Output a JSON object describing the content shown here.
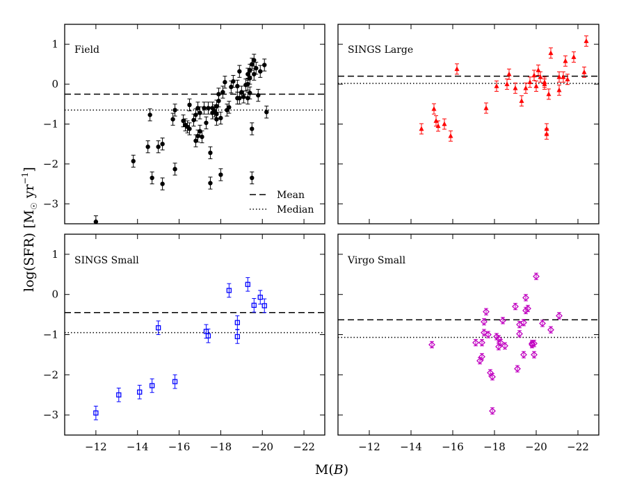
{
  "figure": {
    "xlabel_text": "M(",
    "xlabel_var": "B",
    "xlabel_close": ")",
    "ylabel_main": "log(SFR)",
    "ylabel_unit_M": "M",
    "ylabel_unit_sun": "☉",
    "ylabel_unit_yr": " yr",
    "ylabel_unit_exp": "−1",
    "legend_mean": "Mean",
    "legend_median": "Median"
  },
  "colors": {
    "field": "#000000",
    "sings_large": "#ff0000",
    "sings_small": "#0000ff",
    "virgo_small": "#c000c0"
  },
  "chart_data": [
    {
      "type": "scatter",
      "title": "Field",
      "color": "#000000",
      "marker": "circle",
      "xlim": [
        -10.5,
        -23
      ],
      "ylim": [
        -3.5,
        1.5
      ],
      "xticks": [
        -12,
        -14,
        -16,
        -18,
        -20,
        -22
      ],
      "yticks": [
        1,
        0,
        -1,
        -2,
        -3
      ],
      "xtick_labels": [
        "",
        "",
        "",
        "",
        "",
        ""
      ],
      "ytick_labels": [
        "1",
        "0",
        "−1",
        "−2",
        "−3"
      ],
      "mean": -0.25,
      "median": -0.65,
      "legend": [
        "Mean",
        "Median"
      ],
      "yerr": 0.15,
      "points": [
        [
          -12.0,
          -3.45
        ],
        [
          -13.8,
          -1.93
        ],
        [
          -14.5,
          -1.57
        ],
        [
          -14.6,
          -0.77
        ],
        [
          -14.7,
          -2.35
        ],
        [
          -15.0,
          -1.57
        ],
        [
          -15.2,
          -2.5
        ],
        [
          -15.2,
          -1.5
        ],
        [
          -15.7,
          -0.88
        ],
        [
          -15.8,
          -0.65
        ],
        [
          -15.8,
          -2.13
        ],
        [
          -16.2,
          -0.92
        ],
        [
          -16.3,
          -1.02
        ],
        [
          -16.4,
          -1.07
        ],
        [
          -16.5,
          -1.12
        ],
        [
          -16.5,
          -0.52
        ],
        [
          -16.7,
          -0.9
        ],
        [
          -16.8,
          -1.42
        ],
        [
          -16.8,
          -0.77
        ],
        [
          -16.9,
          -1.3
        ],
        [
          -16.9,
          -0.6
        ],
        [
          -17.0,
          -0.72
        ],
        [
          -17.0,
          -1.18
        ],
        [
          -17.1,
          -1.32
        ],
        [
          -17.2,
          -0.6
        ],
        [
          -17.3,
          -0.97
        ],
        [
          -17.4,
          -0.6
        ],
        [
          -17.5,
          -1.72
        ],
        [
          -17.5,
          -2.48
        ],
        [
          -17.6,
          -0.6
        ],
        [
          -17.6,
          -0.72
        ],
        [
          -17.7,
          -0.67
        ],
        [
          -17.8,
          -0.75
        ],
        [
          -17.8,
          -0.88
        ],
        [
          -17.8,
          -0.55
        ],
        [
          -17.9,
          -0.25
        ],
        [
          -17.9,
          -0.42
        ],
        [
          -18.0,
          -0.85
        ],
        [
          -18.0,
          -2.27
        ],
        [
          -18.1,
          -0.2
        ],
        [
          -18.2,
          0.05
        ],
        [
          -18.3,
          -0.65
        ],
        [
          -18.4,
          -0.58
        ],
        [
          -18.5,
          -0.07
        ],
        [
          -18.6,
          0.07
        ],
        [
          -18.8,
          -0.05
        ],
        [
          -18.8,
          -0.35
        ],
        [
          -18.9,
          -0.35
        ],
        [
          -18.9,
          0.32
        ],
        [
          -19.0,
          -0.2
        ],
        [
          -19.1,
          -0.32
        ],
        [
          -19.2,
          -0.02
        ],
        [
          -19.3,
          0.0
        ],
        [
          -19.3,
          -0.35
        ],
        [
          -19.3,
          0.25
        ],
        [
          -19.4,
          0.35
        ],
        [
          -19.4,
          0.15
        ],
        [
          -19.4,
          -0.22
        ],
        [
          -19.5,
          -2.35
        ],
        [
          -19.5,
          -1.12
        ],
        [
          -19.5,
          0.5
        ],
        [
          -19.6,
          0.6
        ],
        [
          -19.6,
          0.25
        ],
        [
          -19.7,
          0.4
        ],
        [
          -19.8,
          -0.28
        ],
        [
          -19.9,
          0.32
        ],
        [
          -20.1,
          0.48
        ],
        [
          -20.2,
          -0.7
        ]
      ]
    },
    {
      "type": "scatter",
      "title": "SINGS Large",
      "color": "#ff0000",
      "marker": "triangle",
      "xlim": [
        -10.5,
        -23
      ],
      "ylim": [
        -3.5,
        1.5
      ],
      "xticks": [
        -12,
        -14,
        -16,
        -18,
        -20,
        -22
      ],
      "yticks": [
        1,
        0,
        -1,
        -2,
        -3
      ],
      "xtick_labels": [
        "",
        "",
        "",
        "",
        "",
        ""
      ],
      "ytick_labels": [
        "",
        "",
        "",
        "",
        ""
      ],
      "mean": 0.2,
      "median": 0.02,
      "yerr": 0.13,
      "points": [
        [
          -14.5,
          -1.12
        ],
        [
          -15.1,
          -0.62
        ],
        [
          -15.2,
          -0.92
        ],
        [
          -15.3,
          -1.05
        ],
        [
          -15.6,
          -1.0
        ],
        [
          -15.9,
          -1.3
        ],
        [
          -16.2,
          0.38
        ],
        [
          -17.6,
          -0.6
        ],
        [
          -18.1,
          -0.05
        ],
        [
          -18.6,
          0.0
        ],
        [
          -18.7,
          0.25
        ],
        [
          -19.0,
          -0.1
        ],
        [
          -19.3,
          -0.42
        ],
        [
          -19.5,
          -0.1
        ],
        [
          -19.7,
          0.05
        ],
        [
          -19.9,
          0.22
        ],
        [
          -20.0,
          -0.05
        ],
        [
          -20.1,
          0.35
        ],
        [
          -20.2,
          0.18
        ],
        [
          -20.4,
          0.0
        ],
        [
          -20.4,
          0.05
        ],
        [
          -20.5,
          -1.12
        ],
        [
          -20.5,
          -1.25
        ],
        [
          -20.6,
          -0.25
        ],
        [
          -20.7,
          0.78
        ],
        [
          -21.1,
          0.18
        ],
        [
          -21.1,
          -0.15
        ],
        [
          -21.3,
          0.18
        ],
        [
          -21.4,
          0.58
        ],
        [
          -21.5,
          0.12
        ],
        [
          -21.8,
          0.68
        ],
        [
          -22.3,
          0.3
        ],
        [
          -22.4,
          1.08
        ]
      ]
    },
    {
      "type": "scatter",
      "title": "SINGS Small",
      "color": "#0000ff",
      "marker": "square",
      "xlim": [
        -10.5,
        -23
      ],
      "ylim": [
        -3.5,
        1.5
      ],
      "xticks": [
        -12,
        -14,
        -16,
        -18,
        -20,
        -22
      ],
      "yticks": [
        1,
        0,
        -1,
        -2,
        -3
      ],
      "xtick_labels": [
        "−12",
        "−14",
        "−16",
        "−18",
        "−20",
        "−22"
      ],
      "ytick_labels": [
        "1",
        "0",
        "−1",
        "−2",
        "−3"
      ],
      "mean": -0.45,
      "median": -0.95,
      "yerr": 0.17,
      "points": [
        [
          -12.0,
          -2.95
        ],
        [
          -13.1,
          -2.5
        ],
        [
          -14.1,
          -2.43
        ],
        [
          -14.7,
          -2.27
        ],
        [
          -15.0,
          -0.83
        ],
        [
          -15.8,
          -2.17
        ],
        [
          -17.3,
          -0.92
        ],
        [
          -17.4,
          -1.03
        ],
        [
          -18.4,
          0.1
        ],
        [
          -18.8,
          -0.7
        ],
        [
          -18.8,
          -1.05
        ],
        [
          -19.3,
          0.25
        ],
        [
          -19.6,
          -0.27
        ],
        [
          -19.9,
          -0.07
        ],
        [
          -20.1,
          -0.28
        ]
      ]
    },
    {
      "type": "scatter",
      "title": "Virgo Small",
      "color": "#c000c0",
      "marker": "diamond",
      "xlim": [
        -10.5,
        -23
      ],
      "ylim": [
        -3.5,
        1.5
      ],
      "xticks": [
        -12,
        -14,
        -16,
        -18,
        -20,
        -22
      ],
      "yticks": [
        1,
        0,
        -1,
        -2,
        -3
      ],
      "xtick_labels": [
        "−12",
        "−14",
        "−16",
        "−18",
        "−20",
        "−22"
      ],
      "ytick_labels": [
        "",
        "",
        "",
        "",
        ""
      ],
      "mean": -0.63,
      "median": -1.07,
      "yerr": 0.08,
      "points": [
        [
          -15.0,
          -1.25
        ],
        [
          -17.1,
          -1.2
        ],
        [
          -17.3,
          -1.65
        ],
        [
          -17.4,
          -1.55
        ],
        [
          -17.4,
          -1.2
        ],
        [
          -17.5,
          -0.95
        ],
        [
          -17.5,
          -0.68
        ],
        [
          -17.6,
          -0.43
        ],
        [
          -17.7,
          -1.0
        ],
        [
          -17.8,
          -1.95
        ],
        [
          -17.9,
          -2.05
        ],
        [
          -17.9,
          -2.9
        ],
        [
          -18.1,
          -1.05
        ],
        [
          -18.2,
          -1.1
        ],
        [
          -18.2,
          -1.3
        ],
        [
          -18.3,
          -1.2
        ],
        [
          -18.4,
          -0.65
        ],
        [
          -18.5,
          -1.28
        ],
        [
          -19.0,
          -0.3
        ],
        [
          -19.1,
          -1.85
        ],
        [
          -19.2,
          -0.75
        ],
        [
          -19.2,
          -0.98
        ],
        [
          -19.4,
          -1.5
        ],
        [
          -19.4,
          -0.7
        ],
        [
          -19.5,
          -0.4
        ],
        [
          -19.5,
          -0.08
        ],
        [
          -19.6,
          -0.35
        ],
        [
          -19.8,
          -1.22
        ],
        [
          -19.8,
          -1.25
        ],
        [
          -19.9,
          -1.5
        ],
        [
          -19.9,
          -1.22
        ],
        [
          -20.0,
          0.45
        ],
        [
          -20.3,
          -0.72
        ],
        [
          -20.7,
          -0.88
        ],
        [
          -21.1,
          -0.53
        ]
      ]
    }
  ]
}
